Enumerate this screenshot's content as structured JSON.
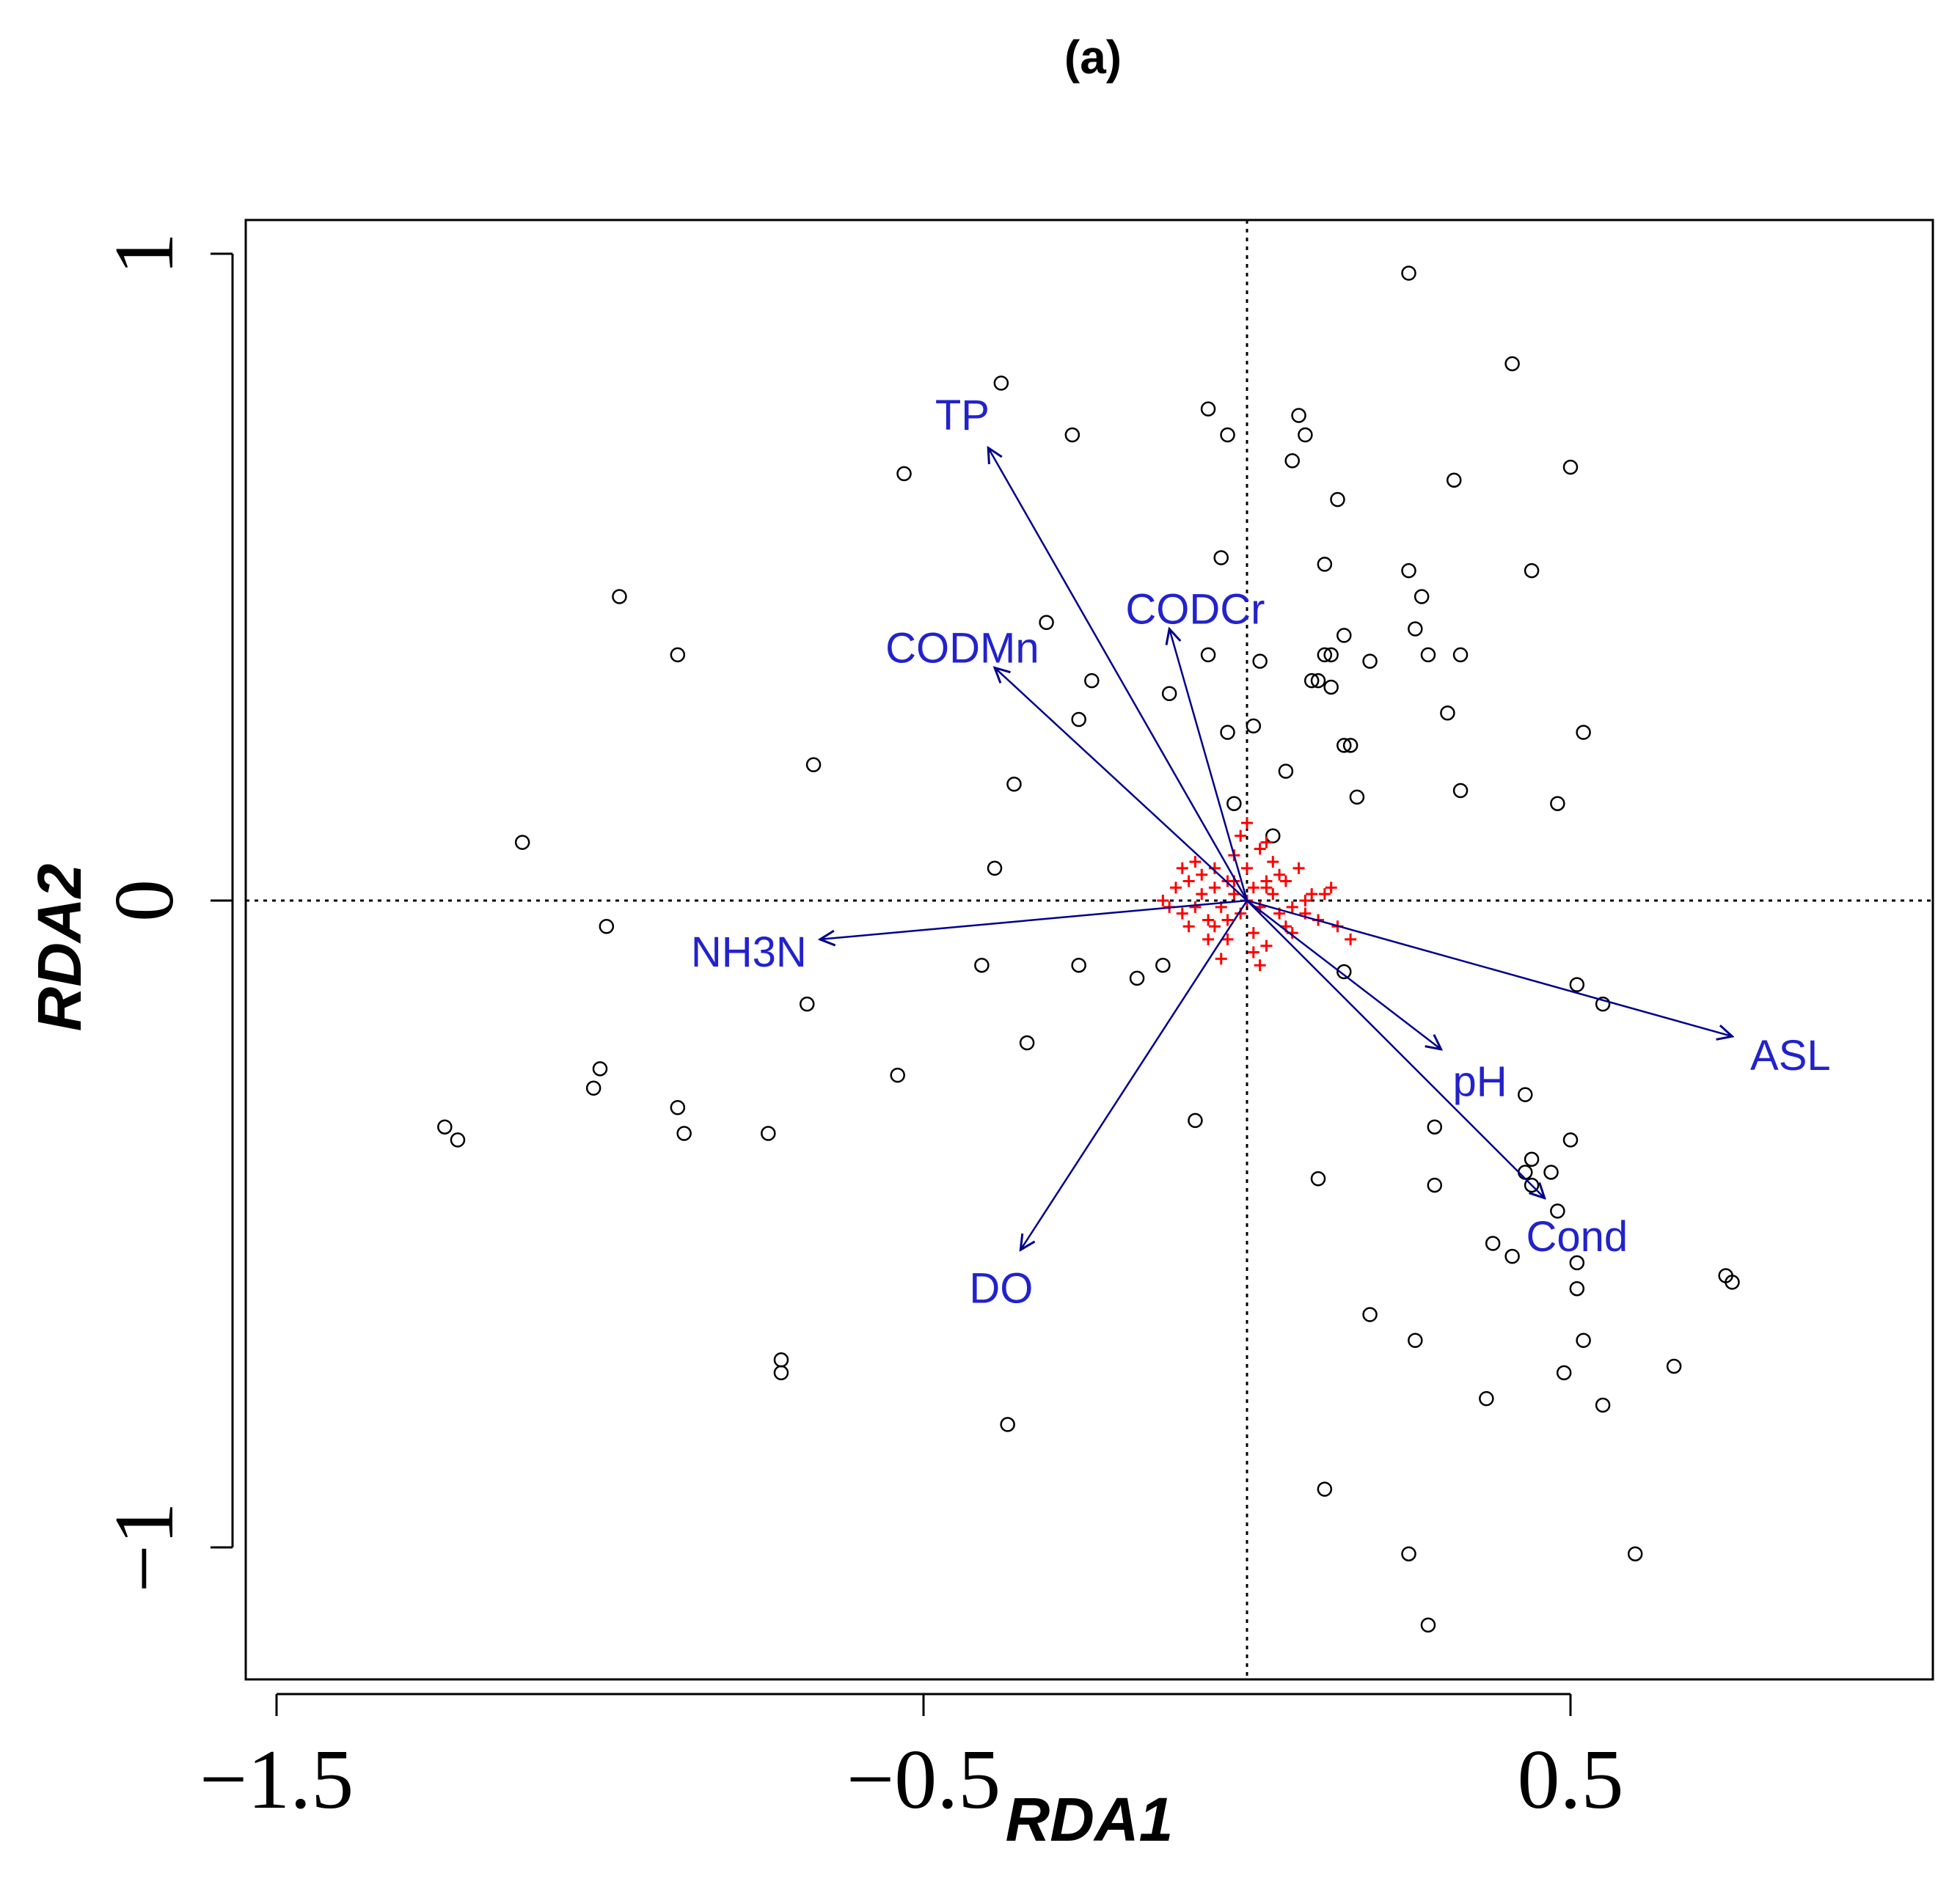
{
  "chart_data": {
    "type": "scatter",
    "panel_label": "(a)",
    "xlabel": "RDA1",
    "ylabel": "RDA2",
    "xlim": [
      -1.55,
      1.05
    ],
    "ylim": [
      -1.2,
      1.05
    ],
    "xticks": [
      {
        "value": -1.5,
        "label": "−1.5"
      },
      {
        "value": -0.5,
        "label": "−0.5"
      },
      {
        "value": 0.5,
        "label": "0.5"
      }
    ],
    "yticks": [
      {
        "value": 1,
        "label": "1"
      },
      {
        "value": 0,
        "label": "0"
      },
      {
        "value": -1,
        "label": "−1"
      }
    ],
    "reference_lines": {
      "x": 0,
      "y": 0
    },
    "colors": {
      "sites": "#000000",
      "species": "#ff0000",
      "vectors": "#00008b",
      "vector_labels": "#2222cc"
    },
    "vectors": [
      {
        "name": "TP",
        "x": -0.4,
        "y": 0.7,
        "label_x": -0.44,
        "label_y": 0.75
      },
      {
        "name": "CODCr",
        "x": -0.12,
        "y": 0.42,
        "label_x": -0.08,
        "label_y": 0.45
      },
      {
        "name": "CODMn",
        "x": -0.39,
        "y": 0.36,
        "label_x": -0.44,
        "label_y": 0.39
      },
      {
        "name": "NH3N",
        "x": -0.66,
        "y": -0.06,
        "label_x": -0.77,
        "label_y": -0.08
      },
      {
        "name": "DO",
        "x": -0.35,
        "y": -0.54,
        "label_x": -0.38,
        "label_y": -0.6
      },
      {
        "name": "pH",
        "x": 0.3,
        "y": -0.23,
        "label_x": 0.36,
        "label_y": -0.28
      },
      {
        "name": "Cond",
        "x": 0.46,
        "y": -0.46,
        "label_x": 0.51,
        "label_y": -0.52
      },
      {
        "name": "ASL",
        "x": 0.75,
        "y": -0.21,
        "label_x": 0.84,
        "label_y": -0.24
      }
    ],
    "sites": [
      {
        "x": 0.25,
        "y": 0.97
      },
      {
        "x": 0.41,
        "y": 0.83
      },
      {
        "x": -0.38,
        "y": 0.8
      },
      {
        "x": -0.06,
        "y": 0.76
      },
      {
        "x": 0.08,
        "y": 0.75
      },
      {
        "x": -0.27,
        "y": 0.72
      },
      {
        "x": -0.03,
        "y": 0.72
      },
      {
        "x": 0.09,
        "y": 0.72
      },
      {
        "x": -0.53,
        "y": 0.66
      },
      {
        "x": 0.07,
        "y": 0.68
      },
      {
        "x": 0.32,
        "y": 0.65
      },
      {
        "x": 0.5,
        "y": 0.67
      },
      {
        "x": 0.14,
        "y": 0.62
      },
      {
        "x": -0.04,
        "y": 0.53
      },
      {
        "x": 0.12,
        "y": 0.52
      },
      {
        "x": 0.25,
        "y": 0.51
      },
      {
        "x": 0.44,
        "y": 0.51
      },
      {
        "x": -0.97,
        "y": 0.47
      },
      {
        "x": 0.27,
        "y": 0.47
      },
      {
        "x": -0.31,
        "y": 0.43
      },
      {
        "x": 0.26,
        "y": 0.42
      },
      {
        "x": 0.15,
        "y": 0.41
      },
      {
        "x": -0.88,
        "y": 0.38
      },
      {
        "x": -0.06,
        "y": 0.38
      },
      {
        "x": 0.02,
        "y": 0.37
      },
      {
        "x": 0.12,
        "y": 0.38
      },
      {
        "x": 0.13,
        "y": 0.38
      },
      {
        "x": 0.19,
        "y": 0.37
      },
      {
        "x": 0.28,
        "y": 0.38
      },
      {
        "x": 0.33,
        "y": 0.38
      },
      {
        "x": -0.24,
        "y": 0.34
      },
      {
        "x": -0.12,
        "y": 0.32
      },
      {
        "x": 0.1,
        "y": 0.34
      },
      {
        "x": 0.11,
        "y": 0.34
      },
      {
        "x": 0.13,
        "y": 0.33
      },
      {
        "x": -0.26,
        "y": 0.28
      },
      {
        "x": 0.31,
        "y": 0.29
      },
      {
        "x": -0.03,
        "y": 0.26
      },
      {
        "x": 0.01,
        "y": 0.27
      },
      {
        "x": 0.15,
        "y": 0.24
      },
      {
        "x": 0.16,
        "y": 0.24
      },
      {
        "x": 0.52,
        "y": 0.26
      },
      {
        "x": -0.67,
        "y": 0.21
      },
      {
        "x": 0.06,
        "y": 0.2
      },
      {
        "x": -0.36,
        "y": 0.18
      },
      {
        "x": 0.33,
        "y": 0.17
      },
      {
        "x": 0.17,
        "y": 0.16
      },
      {
        "x": 0.48,
        "y": 0.15
      },
      {
        "x": -0.02,
        "y": 0.15
      },
      {
        "x": 0.04,
        "y": 0.1
      },
      {
        "x": -1.12,
        "y": 0.09
      },
      {
        "x": -0.39,
        "y": 0.05
      },
      {
        "x": -0.99,
        "y": -0.04
      },
      {
        "x": -0.41,
        "y": -0.1
      },
      {
        "x": -0.26,
        "y": -0.1
      },
      {
        "x": -0.13,
        "y": -0.1
      },
      {
        "x": -0.17,
        "y": -0.12
      },
      {
        "x": 0.15,
        "y": -0.11
      },
      {
        "x": -0.68,
        "y": -0.16
      },
      {
        "x": 0.51,
        "y": -0.13
      },
      {
        "x": 0.55,
        "y": -0.16
      },
      {
        "x": -0.34,
        "y": -0.22
      },
      {
        "x": -0.54,
        "y": -0.27
      },
      {
        "x": -1.0,
        "y": -0.26
      },
      {
        "x": -1.01,
        "y": -0.29
      },
      {
        "x": 0.43,
        "y": -0.3
      },
      {
        "x": -0.88,
        "y": -0.32
      },
      {
        "x": -0.87,
        "y": -0.36
      },
      {
        "x": -0.74,
        "y": -0.36
      },
      {
        "x": -1.24,
        "y": -0.35
      },
      {
        "x": -1.22,
        "y": -0.37
      },
      {
        "x": -0.08,
        "y": -0.34
      },
      {
        "x": 0.29,
        "y": -0.35
      },
      {
        "x": 0.5,
        "y": -0.37
      },
      {
        "x": 0.44,
        "y": -0.4
      },
      {
        "x": 0.47,
        "y": -0.42
      },
      {
        "x": 0.11,
        "y": -0.43
      },
      {
        "x": 0.29,
        "y": -0.44
      },
      {
        "x": 0.43,
        "y": -0.42
      },
      {
        "x": 0.44,
        "y": -0.44
      },
      {
        "x": 0.48,
        "y": -0.48
      },
      {
        "x": 0.38,
        "y": -0.53
      },
      {
        "x": 0.41,
        "y": -0.55
      },
      {
        "x": 0.51,
        "y": -0.56
      },
      {
        "x": 0.51,
        "y": -0.6
      },
      {
        "x": 0.74,
        "y": -0.58
      },
      {
        "x": 0.75,
        "y": -0.59
      },
      {
        "x": 0.19,
        "y": -0.64
      },
      {
        "x": 0.26,
        "y": -0.68
      },
      {
        "x": 0.52,
        "y": -0.68
      },
      {
        "x": -0.72,
        "y": -0.71
      },
      {
        "x": -0.72,
        "y": -0.73
      },
      {
        "x": 0.66,
        "y": -0.72
      },
      {
        "x": 0.49,
        "y": -0.73
      },
      {
        "x": 0.37,
        "y": -0.77
      },
      {
        "x": 0.55,
        "y": -0.78
      },
      {
        "x": -0.37,
        "y": -0.81
      },
      {
        "x": 0.12,
        "y": -0.91
      },
      {
        "x": 0.25,
        "y": -1.01
      },
      {
        "x": 0.6,
        "y": -1.01
      },
      {
        "x": 0.28,
        "y": -1.12
      }
    ],
    "species": [
      {
        "x": 0.0,
        "y": 0.0
      },
      {
        "x": 0.01,
        "y": 0.02
      },
      {
        "x": -0.02,
        "y": 0.01
      },
      {
        "x": 0.02,
        "y": -0.01
      },
      {
        "x": -0.01,
        "y": -0.02
      },
      {
        "x": 0.03,
        "y": 0.03
      },
      {
        "x": -0.03,
        "y": 0.03
      },
      {
        "x": -0.04,
        "y": -0.01
      },
      {
        "x": 0.04,
        "y": 0.01
      },
      {
        "x": 0.0,
        "y": 0.05
      },
      {
        "x": 0.01,
        "y": -0.05
      },
      {
        "x": -0.05,
        "y": 0.02
      },
      {
        "x": 0.05,
        "y": -0.02
      },
      {
        "x": -0.06,
        "y": -0.03
      },
      {
        "x": 0.06,
        "y": 0.03
      },
      {
        "x": -0.02,
        "y": 0.07
      },
      {
        "x": 0.02,
        "y": 0.08
      },
      {
        "x": -0.07,
        "y": 0.01
      },
      {
        "x": 0.07,
        "y": -0.01
      },
      {
        "x": -0.03,
        "y": -0.06
      },
      {
        "x": 0.03,
        "y": -0.07
      },
      {
        "x": -0.08,
        "y": -0.01
      },
      {
        "x": 0.09,
        "y": 0.0
      },
      {
        "x": -0.09,
        "y": 0.03
      },
      {
        "x": 0.1,
        "y": 0.01
      },
      {
        "x": -0.05,
        "y": 0.05
      },
      {
        "x": 0.04,
        "y": 0.06
      },
      {
        "x": -0.06,
        "y": -0.06
      },
      {
        "x": 0.06,
        "y": -0.04
      },
      {
        "x": -0.1,
        "y": -0.02
      },
      {
        "x": 0.11,
        "y": -0.03
      },
      {
        "x": -0.01,
        "y": 0.1
      },
      {
        "x": 0.03,
        "y": 0.09
      },
      {
        "x": -0.11,
        "y": 0.02
      },
      {
        "x": 0.12,
        "y": 0.01
      },
      {
        "x": -0.04,
        "y": -0.09
      },
      {
        "x": 0.01,
        "y": -0.08
      },
      {
        "x": -0.09,
        "y": -0.04
      },
      {
        "x": 0.08,
        "y": 0.05
      },
      {
        "x": -0.07,
        "y": 0.04
      },
      {
        "x": 0.14,
        "y": -0.04
      },
      {
        "x": -0.12,
        "y": -0.01
      },
      {
        "x": 0.02,
        "y": -0.1
      },
      {
        "x": -0.02,
        "y": 0.03
      },
      {
        "x": 0.13,
        "y": 0.02
      },
      {
        "x": -0.08,
        "y": 0.06
      },
      {
        "x": 0.05,
        "y": 0.04
      },
      {
        "x": 0.16,
        "y": -0.06
      },
      {
        "x": -0.13,
        "y": 0.0
      },
      {
        "x": 0.0,
        "y": 0.12
      },
      {
        "x": 0.07,
        "y": -0.05
      },
      {
        "x": -0.05,
        "y": -0.04
      },
      {
        "x": 0.09,
        "y": -0.02
      },
      {
        "x": -0.1,
        "y": 0.05
      },
      {
        "x": 0.03,
        "y": 0.02
      },
      {
        "x": -0.03,
        "y": -0.03
      }
    ]
  }
}
